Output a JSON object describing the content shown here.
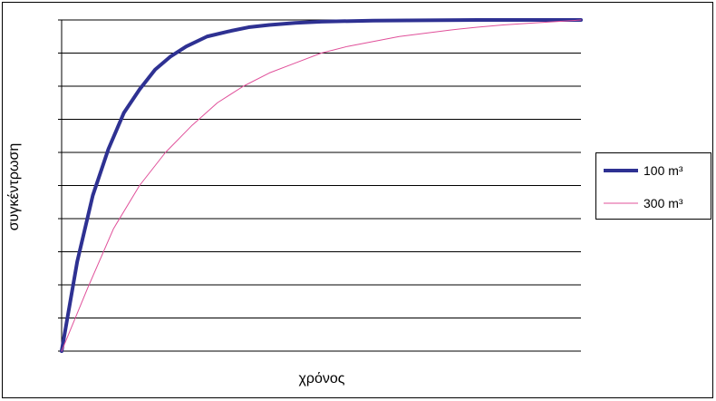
{
  "chart_data": {
    "type": "line",
    "title": "",
    "xlabel": "χρόνος",
    "ylabel": "συγκέντρωση",
    "x_ticks_labeled": false,
    "y_ticks_labeled": false,
    "grid": "horizontal",
    "legend_position": "right",
    "series": [
      {
        "name": "100 m³",
        "color": "#2e3192",
        "style": "thick",
        "x": [
          0,
          0.03,
          0.06,
          0.09,
          0.12,
          0.15,
          0.18,
          0.21,
          0.24,
          0.28,
          0.32,
          0.36,
          0.4,
          0.45,
          0.5,
          0.6,
          0.7,
          0.8,
          0.9,
          1.0
        ],
        "y": [
          0,
          0.27,
          0.47,
          0.61,
          0.72,
          0.79,
          0.85,
          0.89,
          0.92,
          0.95,
          0.965,
          0.978,
          0.985,
          0.991,
          0.995,
          0.998,
          0.999,
          1.0,
          1.0,
          1.0
        ]
      },
      {
        "name": "300 m³",
        "color": "#e0509a",
        "style": "thin",
        "x": [
          0,
          0.05,
          0.1,
          0.15,
          0.2,
          0.25,
          0.3,
          0.35,
          0.4,
          0.45,
          0.5,
          0.55,
          0.6,
          0.65,
          0.7,
          0.75,
          0.8,
          0.85,
          0.9,
          0.95,
          1.0
        ],
        "y": [
          0,
          0.19,
          0.37,
          0.5,
          0.6,
          0.68,
          0.75,
          0.8,
          0.84,
          0.87,
          0.9,
          0.92,
          0.935,
          0.95,
          0.96,
          0.97,
          0.978,
          0.985,
          0.99,
          0.995,
          1.0
        ]
      }
    ],
    "gridline_count": 10
  }
}
